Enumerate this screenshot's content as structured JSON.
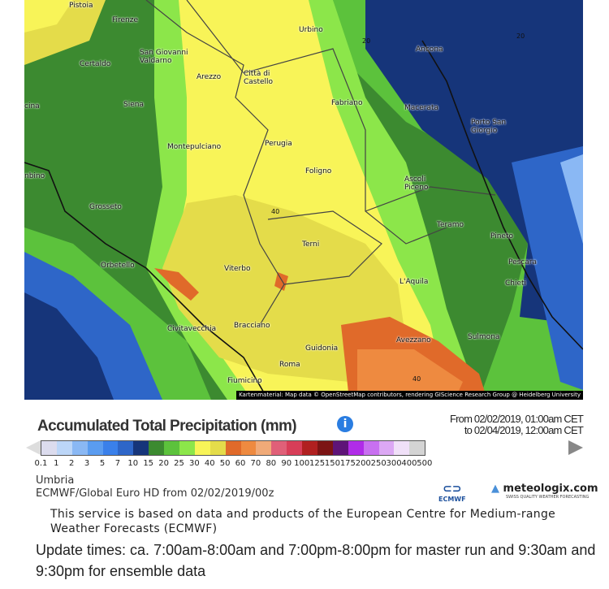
{
  "map": {
    "cities": [
      "Pistoia",
      "Firenze",
      "Urbino",
      "Ancona",
      "Certaldo",
      "San Giovanni Valdarno",
      "Arezzo",
      "Città di Castello",
      "Siena",
      "Fabriano",
      "Macerata",
      "Porto San Giorgio",
      "Montepulciano",
      "Perugia",
      "Foligno",
      "Ascoli Piceno",
      "Grosseto",
      "Teramo",
      "Pineto",
      "Terni",
      "Pescara",
      "Orbetello",
      "Viterbo",
      "L'Aquila",
      "Chieti",
      "Civitavecchia",
      "Bracciano",
      "Avezzano",
      "Sulmona",
      "Guidonia",
      "Roma",
      "Fiumicino",
      "cina",
      "nbino"
    ],
    "contour_labels": [
      "20",
      "20",
      "40",
      "40"
    ],
    "attribution": "Kartenmaterial: Map data © OpenStreetMap contributors, rendering GIScience Research Group @ Heidelberg University"
  },
  "legend": {
    "title": "Accumulated Total Precipitation (mm)",
    "info_icon": "i",
    "from": "From 02/02/2019, 01:00am CET",
    "to": "to 02/04/2019, 12:00am CET",
    "ticks": [
      "0.1",
      "1",
      "2",
      "3",
      "5",
      "7",
      "10",
      "15",
      "20",
      "25",
      "30",
      "40",
      "50",
      "60",
      "70",
      "80",
      "90",
      "100",
      "125",
      "150",
      "175",
      "200",
      "250",
      "300",
      "400",
      "500"
    ],
    "colors": [
      "#dcdcee",
      "#bcd6f8",
      "#8ab8f4",
      "#5a9cf0",
      "#3a80ea",
      "#2e66c8",
      "#16357a",
      "#3c8a30",
      "#5cc23c",
      "#8ce64a",
      "#f8f458",
      "#e4dc4a",
      "#e06a2a",
      "#ee8a40",
      "#f0aa78",
      "#e06078",
      "#d83e58",
      "#b02020",
      "#7c1414",
      "#5e1478",
      "#b02ce8",
      "#c870f0",
      "#dca8f4",
      "#f0e0f8",
      "#d4d4d4"
    ]
  },
  "footer": {
    "region": "Umbria",
    "model": "ECMWF/Global Euro HD from 02/02/2019/00z",
    "ecmwf_logo": "ECMWF",
    "meteologix": "meteologix.com",
    "meteologix_tagline": "SWISS QUALITY WEATHER FORECASTING",
    "disclaimer": "This service is based on data and products of the European Centre for Medium-range Weather Forecasts (ECMWF)",
    "update_times": "Update times: ca. 7:00am-8:00am and 7:00pm-8:00pm for master run and 9:30am and 9:30pm for ensemble data"
  }
}
